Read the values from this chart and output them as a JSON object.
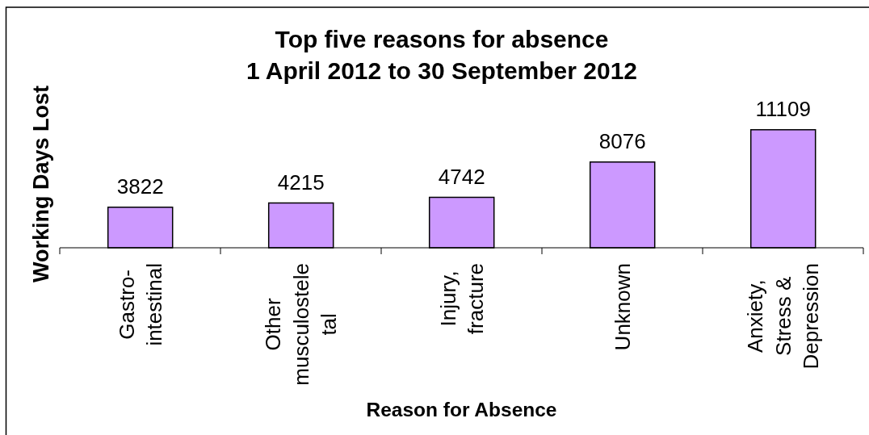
{
  "chart_data": {
    "type": "bar",
    "title": "Top five reasons for absence",
    "subtitle": "1 April 2012 to 30 September 2012",
    "xlabel": "Reason for Absence",
    "ylabel": "Working Days Lost",
    "categories": [
      "Gastro-\nintestinal",
      "Other\nmusculostele\ntal",
      "Injury,\nfracture",
      "Unknown",
      "Anxiety,\nStress &\nDepression"
    ],
    "values": [
      3822,
      4215,
      4742,
      8076,
      11109
    ],
    "color": "#cc99ff",
    "data_labels": true,
    "tick_labels": "x"
  }
}
